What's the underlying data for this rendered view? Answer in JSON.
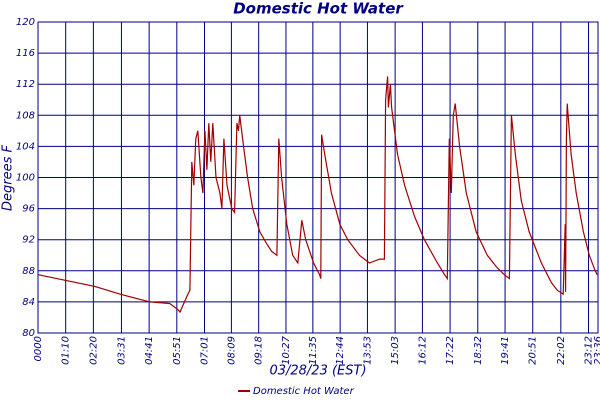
{
  "chart_data": {
    "type": "line",
    "title": "Domestic Hot Water",
    "xlabel": "03/28/23 (EST)",
    "ylabel": "Degrees F",
    "x": [
      0,
      144,
      207,
      283,
      333,
      354,
      359,
      379,
      384,
      389,
      394,
      399,
      404,
      412,
      417,
      422,
      427,
      432,
      437,
      442,
      450,
      460,
      465,
      470,
      478,
      490,
      497,
      503,
      507,
      510,
      520,
      530,
      543,
      561,
      578,
      591,
      604,
      609,
      616,
      629,
      644,
      657,
      667,
      677,
      697,
      712,
      715,
      717,
      725,
      742,
      763,
      783,
      813,
      838,
      864,
      876,
      879,
      884,
      886,
      891,
      894,
      909,
      927,
      952,
      977,
      1010,
      1028,
      1035,
      1040,
      1045,
      1050,
      1055,
      1066,
      1083,
      1108,
      1136,
      1159,
      1179,
      1192,
      1197,
      1207,
      1222,
      1242,
      1273,
      1298,
      1313,
      1328,
      1333,
      1334,
      1336,
      1338,
      1348,
      1361,
      1379,
      1394,
      1409,
      1414
    ],
    "series": [
      {
        "name": "Domestic Hot Water",
        "color": "#a00000",
        "values": [
          87.5,
          86,
          85,
          84,
          83.8,
          83,
          82.7,
          85,
          85.5,
          102,
          99,
          105,
          106,
          100,
          98,
          106,
          101,
          107,
          102,
          107,
          100,
          98,
          96,
          105,
          99,
          96,
          95.5,
          107,
          106,
          108,
          104,
          100,
          96,
          93,
          91.5,
          90.5,
          90,
          105,
          100,
          94,
          90,
          89,
          94.5,
          92,
          89,
          87.5,
          87,
          105.5,
          103,
          98,
          94,
          92,
          90,
          89,
          89.5,
          89.5,
          110,
          113,
          109,
          112,
          109,
          103,
          99,
          95,
          92,
          89,
          87.5,
          87,
          105,
          98,
          108,
          109.5,
          104,
          98,
          93,
          90,
          88.5,
          87.5,
          87,
          108,
          103,
          97,
          93,
          89,
          86.5,
          85.5,
          85,
          94,
          85.3,
          105,
          109.5,
          103,
          98,
          93,
          90,
          88,
          87.5
        ]
      }
    ],
    "xlim": [
      0,
      1416
    ],
    "xticks": [
      {
        "value": 0,
        "label": "0000"
      },
      {
        "value": 70,
        "label": "01:10"
      },
      {
        "value": 140,
        "label": "02:20"
      },
      {
        "value": 211,
        "label": "03:31"
      },
      {
        "value": 281,
        "label": "04:41"
      },
      {
        "value": 351,
        "label": "05:51"
      },
      {
        "value": 421,
        "label": "07:01"
      },
      {
        "value": 489,
        "label": "08:09"
      },
      {
        "value": 558,
        "label": "09:18"
      },
      {
        "value": 627,
        "label": "10:27"
      },
      {
        "value": 695,
        "label": "11:35"
      },
      {
        "value": 764,
        "label": "12:44"
      },
      {
        "value": 833,
        "label": "13:53"
      },
      {
        "value": 903,
        "label": "15:03"
      },
      {
        "value": 972,
        "label": "16:12"
      },
      {
        "value": 1042,
        "label": "17:22"
      },
      {
        "value": 1112,
        "label": "18:32"
      },
      {
        "value": 1181,
        "label": "19:41"
      },
      {
        "value": 1251,
        "label": "20:51"
      },
      {
        "value": 1322,
        "label": "22:02"
      },
      {
        "value": 1392,
        "label": "23:12"
      },
      {
        "value": 1416,
        "label": "23:36"
      }
    ],
    "ylim": [
      80,
      120
    ],
    "yticks": [
      80,
      84,
      88,
      92,
      96,
      100,
      104,
      108,
      112,
      116,
      120
    ],
    "grid": true
  }
}
